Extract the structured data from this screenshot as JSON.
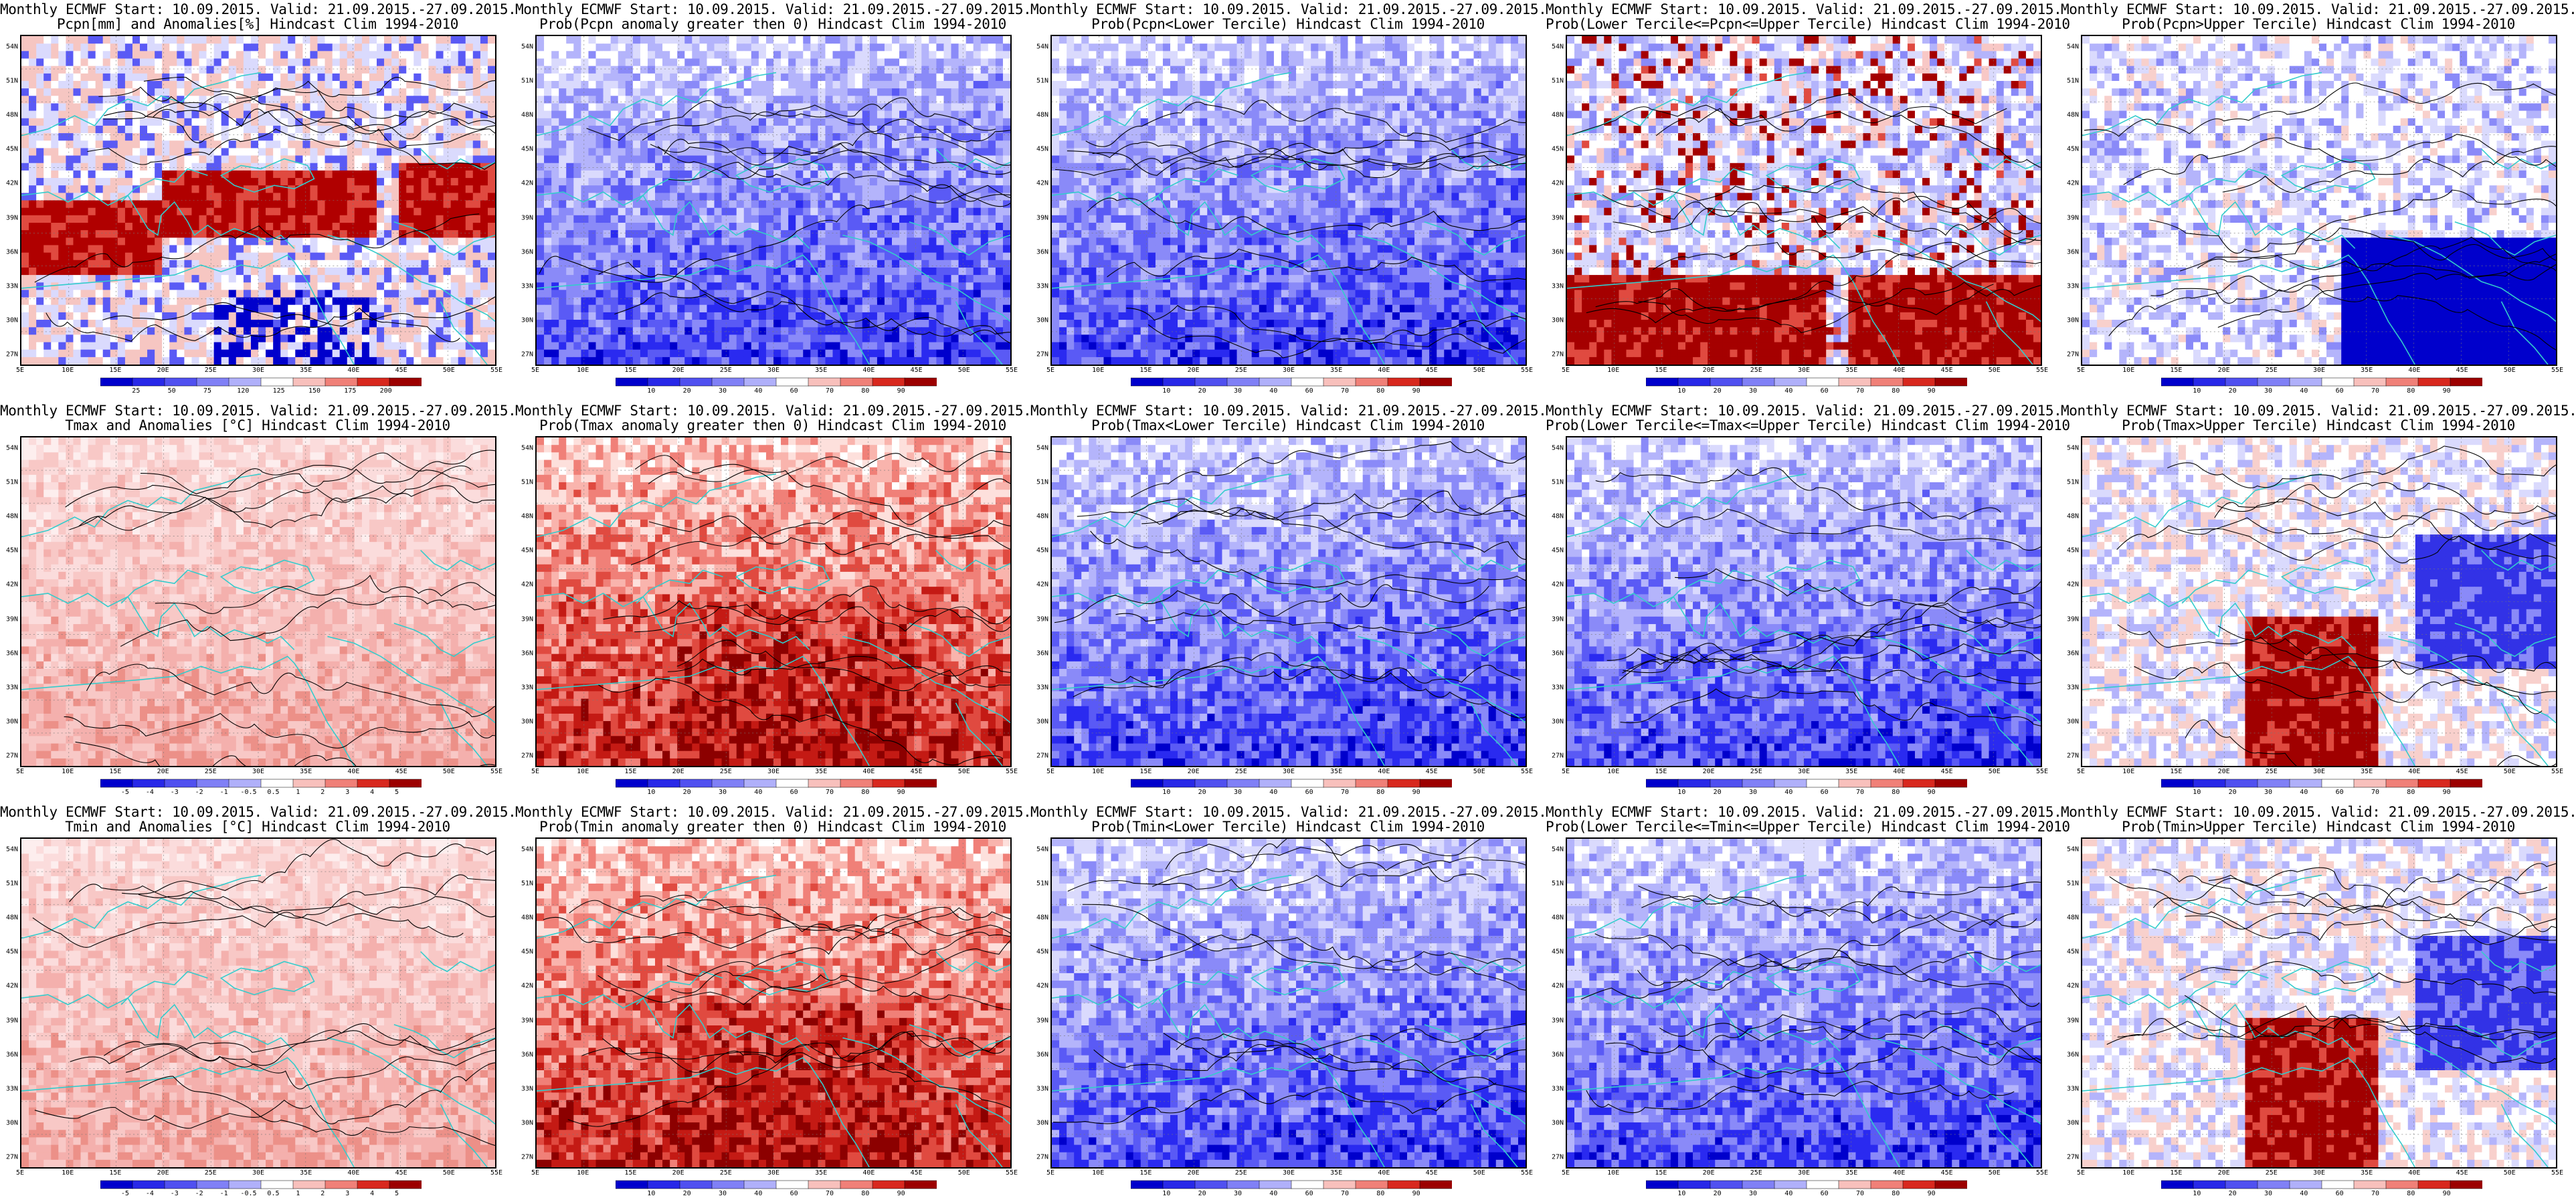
{
  "lat_labels": [
    "54N",
    "51N",
    "48N",
    "45N",
    "42N",
    "39N",
    "36N",
    "33N",
    "30N",
    "27N"
  ],
  "lon_labels": [
    "5E",
    "10E",
    "15E",
    "20E",
    "25E",
    "30E",
    "35E",
    "40E",
    "45E",
    "50E",
    "55E"
  ],
  "colors": {
    "coastline": "#33cccc",
    "contour": "#000000",
    "red_dark": "#a50000",
    "blue_dark": "#0000cc"
  },
  "panels": [
    {
      "line1": "Monthly ECMWF Start: 10.09.2015. Valid: 21.09.2015.-27.09.2015.",
      "line2": "Pcpn[mm] and Anomalies[%] Hindcast Clim 1994-2010",
      "palette": "pcpn_anom",
      "ticks": [
        "25",
        "50",
        "75",
        "120",
        "125",
        "150",
        "175",
        "200"
      ]
    },
    {
      "line1": "Monthly ECMWF Start: 10.09.2015. Valid: 21.09.2015.-27.09.2015.",
      "line2": "Prob(Pcpn anomaly greater then 0) Hindcast Clim 1994-2010",
      "palette": "blue",
      "ticks": [
        "10",
        "20",
        "30",
        "40",
        "60",
        "70",
        "80",
        "90"
      ]
    },
    {
      "line1": "Monthly ECMWF Start: 10.09.2015. Valid: 21.09.2015.-27.09.2015.",
      "line2": "Prob(Pcpn<Lower Tercile) Hindcast Clim 1994-2010",
      "palette": "blue",
      "ticks": [
        "10",
        "20",
        "30",
        "40",
        "60",
        "70",
        "80",
        "90"
      ]
    },
    {
      "line1": "Monthly ECMWF Start: 10.09.2015. Valid: 21.09.2015.-27.09.2015.",
      "line2": "Prob(Lower Tercile<=Pcpn<=Upper Tercile) Hindcast Clim 1994-2010",
      "palette": "redsouth",
      "ticks": [
        "10",
        "20",
        "30",
        "40",
        "60",
        "70",
        "80",
        "90"
      ]
    },
    {
      "line1": "Monthly ECMWF Start: 10.09.2015. Valid: 21.09.2015.-27.09.2015.",
      "line2": "Prob(Pcpn>Upper Tercile) Hindcast Clim 1994-2010",
      "palette": "bluesouth",
      "ticks": [
        "10",
        "20",
        "30",
        "40",
        "60",
        "70",
        "80",
        "90"
      ]
    },
    {
      "line1": "Monthly ECMWF Start: 10.09.2015. Valid: 21.09.2015.-27.09.2015.",
      "line2": "Tmax and Anomalies [°C] Hindcast Clim 1994-2010",
      "palette": "lightred",
      "ticks": [
        "-5",
        "-4",
        "-3",
        "-2",
        "-1",
        "-0.5",
        "0.5",
        "1",
        "2",
        "3",
        "4",
        "5"
      ]
    },
    {
      "line1": "Monthly ECMWF Start: 10.09.2015. Valid: 21.09.2015.-27.09.2015.",
      "line2": "Prob(Tmax anomaly greater then 0) Hindcast Clim 1994-2010",
      "palette": "red",
      "ticks": [
        "10",
        "20",
        "30",
        "40",
        "60",
        "70",
        "80",
        "90"
      ]
    },
    {
      "line1": "Monthly ECMWF Start: 10.09.2015. Valid: 21.09.2015.-27.09.2015.",
      "line2": "Prob(Tmax<Lower Tercile) Hindcast Clim 1994-2010",
      "palette": "blue",
      "ticks": [
        "10",
        "20",
        "30",
        "40",
        "60",
        "70",
        "80",
        "90"
      ]
    },
    {
      "line1": "Monthly ECMWF Start: 10.09.2015. Valid: 21.09.2015.-27.09.2015.",
      "line2": "Prob(Lower Tercile<=Tmax<=Upper Tercile) Hindcast Clim 1994-2010",
      "palette": "blue",
      "ticks": [
        "10",
        "20",
        "30",
        "40",
        "60",
        "70",
        "80",
        "90"
      ]
    },
    {
      "line1": "Monthly ECMWF Start: 10.09.2015. Valid: 21.09.2015.-27.09.2015.",
      "line2": "Prob(Tmax>Upper Tercile) Hindcast Clim 1994-2010",
      "palette": "mixed",
      "ticks": [
        "10",
        "20",
        "30",
        "40",
        "60",
        "70",
        "80",
        "90"
      ]
    },
    {
      "line1": "Monthly ECMWF Start: 10.09.2015. Valid: 21.09.2015.-27.09.2015.",
      "line2": "Tmin and Anomalies [°C] Hindcast Clim 1994-2010",
      "palette": "lightred",
      "ticks": [
        "-5",
        "-4",
        "-3",
        "-2",
        "-1",
        "-0.5",
        "0.5",
        "1",
        "2",
        "3",
        "4",
        "5"
      ]
    },
    {
      "line1": "Monthly ECMWF Start: 10.09.2015. Valid: 21.09.2015.-27.09.2015.",
      "line2": "Prob(Tmin anomaly greater then 0) Hindcast Clim 1994-2010",
      "palette": "red",
      "ticks": [
        "10",
        "20",
        "30",
        "40",
        "60",
        "70",
        "80",
        "90"
      ]
    },
    {
      "line1": "Monthly ECMWF Start: 10.09.2015. Valid: 21.09.2015.-27.09.2015.",
      "line2": "Prob(Tmin<Lower Tercile) Hindcast Clim 1994-2010",
      "palette": "blue",
      "ticks": [
        "10",
        "20",
        "30",
        "40",
        "60",
        "70",
        "80",
        "90"
      ]
    },
    {
      "line1": "Monthly ECMWF Start: 10.09.2015. Valid: 21.09.2015.-27.09.2015.",
      "line2": "Prob(Lower Tercile<=Tmin<=Upper Tercile) Hindcast Clim 1994-2010",
      "palette": "blue",
      "ticks": [
        "10",
        "20",
        "30",
        "40",
        "60",
        "70",
        "80",
        "90"
      ]
    },
    {
      "line1": "Monthly ECMWF Start: 10.09.2015. Valid: 21.09.2015.-27.09.2015.",
      "line2": "Prob(Tmin>Upper Tercile) Hindcast Clim 1994-2010",
      "palette": "mixed",
      "ticks": [
        "10",
        "20",
        "30",
        "40",
        "60",
        "70",
        "80",
        "90"
      ]
    }
  ]
}
